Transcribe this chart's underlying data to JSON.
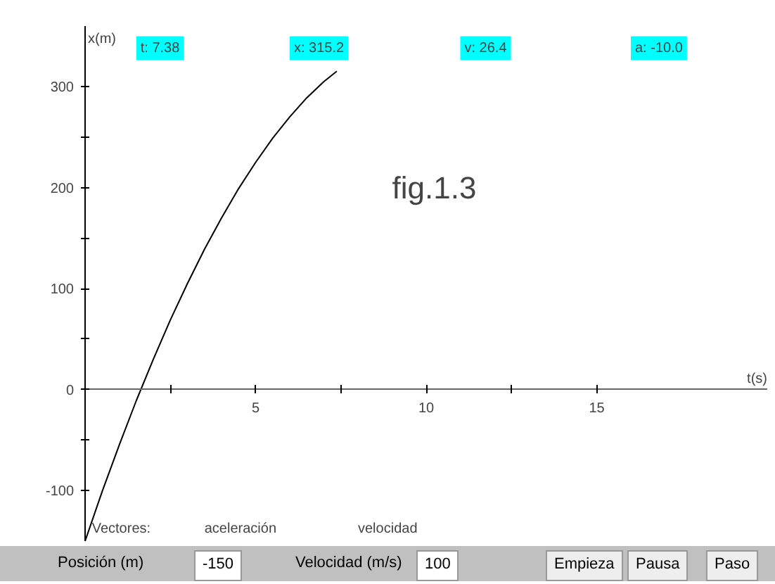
{
  "chart_data": {
    "type": "line",
    "xlabel": "t(s)",
    "ylabel": "x(m)",
    "x": [
      0,
      0.5,
      1,
      1.5,
      2,
      2.5,
      3,
      3.5,
      4,
      4.5,
      5,
      5.5,
      6,
      6.5,
      7,
      7.38
    ],
    "series": [
      {
        "color": "#000000",
        "values": [
          -150,
          -101,
          -55,
          -11,
          30,
          69,
          105,
          139,
          170,
          199,
          225,
          249,
          270,
          289,
          305,
          315.2
        ]
      }
    ],
    "xlim": [
      0,
      20
    ],
    "ylim": [
      -150,
      360
    ],
    "xticks": [
      {
        "value": 2.5,
        "label": null
      },
      5,
      {
        "value": 7.5,
        "label": null
      },
      10,
      {
        "value": 12.5,
        "label": null
      },
      15
    ],
    "yticks": [
      -100,
      {
        "value": -50,
        "label": null
      },
      0,
      {
        "value": 50,
        "label": null
      },
      100,
      {
        "value": 150,
        "label": null
      },
      200,
      {
        "value": 250,
        "label": null
      },
      300
    ],
    "grid": false,
    "marker": "none",
    "line_style": "solid",
    "annotations": [
      "fig.1.3",
      "t: 7.38",
      "x: 315.2",
      "v: 26.4",
      "a: -10.0",
      "Vectores:",
      "aceleración",
      "velocidad",
      "Posición (m)",
      "-150",
      "Velocidad (m/s)",
      "100",
      "Empieza",
      "Pausa",
      "Paso"
    ]
  }
}
